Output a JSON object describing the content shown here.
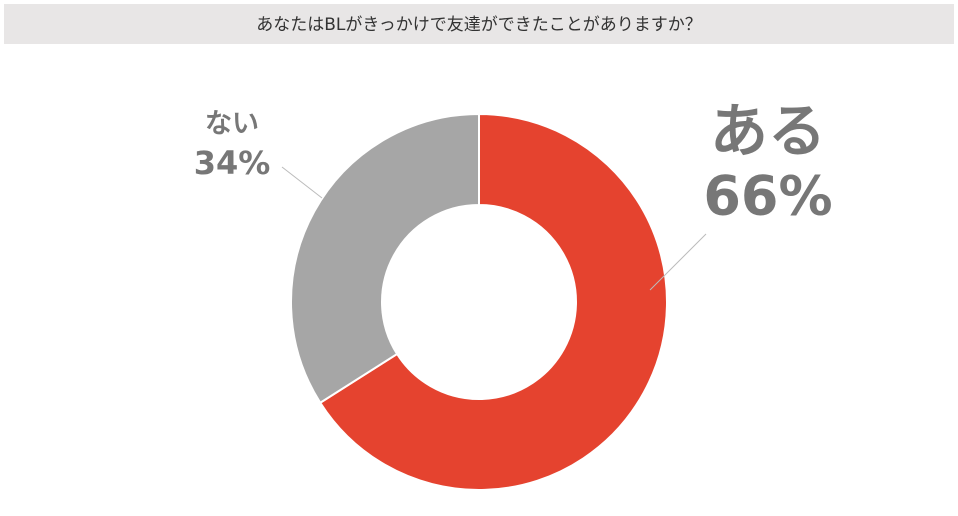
{
  "chart_data": {
    "type": "donut",
    "title": "あなたはBLがきっかけで友達ができたことがありますか？",
    "categories": [
      "ある",
      "ない"
    ],
    "values": [
      66,
      34
    ],
    "value_labels": [
      "66%",
      "34%"
    ],
    "colors": [
      "#e5432f",
      "#a6a6a6"
    ]
  }
}
